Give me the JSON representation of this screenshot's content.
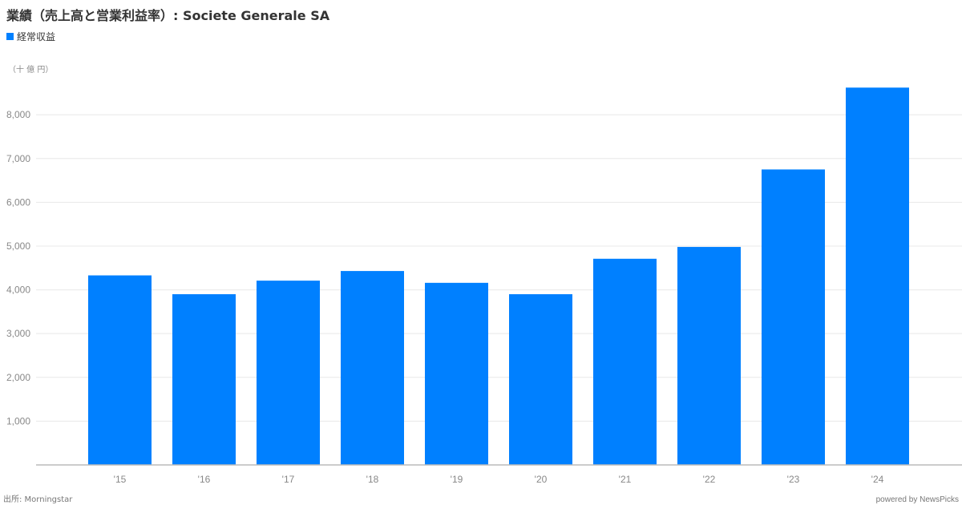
{
  "title": "業績（売上高と営業利益率）: Societe Generale SA",
  "unit_label": "（十 億 円）",
  "source": "出所: Morningstar",
  "powered_by": "powered by NewsPicks",
  "colors": {
    "bar": "#0080ff",
    "grid": "#e8e8e8",
    "axis": "#bbbbbb",
    "tick_text": "#888888"
  },
  "chart_data": {
    "type": "bar",
    "categories": [
      "'15",
      "'16",
      "'17",
      "'18",
      "'19",
      "'20",
      "'21",
      "'22",
      "'23",
      "'24"
    ],
    "series": [
      {
        "name": "経常収益",
        "values": [
          4330,
          3900,
          4210,
          4430,
          4160,
          3900,
          4710,
          4980,
          6750,
          8620
        ]
      }
    ],
    "yticks": [
      1000,
      2000,
      3000,
      4000,
      5000,
      6000,
      7000,
      8000
    ],
    "ytick_labels": [
      "1,000",
      "2,000",
      "3,000",
      "4,000",
      "5,000",
      "6,000",
      "7,000",
      "8,000"
    ],
    "ylim": [
      0,
      8900
    ],
    "legend_position": "top-left",
    "grid": true
  }
}
